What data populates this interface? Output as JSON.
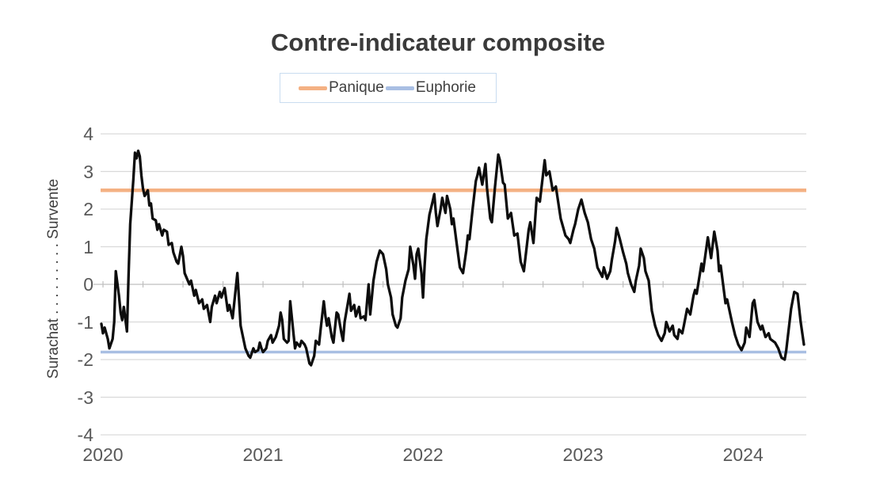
{
  "title": "Contre-indicateur composite",
  "y_axis_title": "Surachat  . . . . . . . . .  Survente",
  "legend": {
    "items": [
      {
        "label": "Panique",
        "color": "#F4B183"
      },
      {
        "label": "Euphorie",
        "color": "#A9BFE3"
      }
    ]
  },
  "colors": {
    "series": "#0D0D0D",
    "panique": "#F4B183",
    "euphorie": "#A9BFE3",
    "gridline": "#D9D9D9",
    "axis_line": "#BFBFBF",
    "tick_text": "#595959",
    "title_text": "#3A3A3A",
    "legend_border": "#C9DCF0"
  },
  "chart_data": {
    "type": "line",
    "title": "Contre-indicateur composite",
    "xlabel": "",
    "ylabel": "Surachat  . . . . . . . . .  Survente",
    "x_tick_years": [
      2020,
      2021,
      2022,
      2023,
      2024
    ],
    "x_tick_labels": [
      "2020",
      "2021",
      "2022",
      "2023",
      "2024"
    ],
    "y_ticks": [
      4,
      3,
      2,
      1,
      0,
      -1,
      -2,
      -3,
      -4
    ],
    "ylim": [
      -4,
      4
    ],
    "xlim": [
      2019.985,
      2024.395
    ],
    "grid": "horizontal",
    "legend_position": "top",
    "minor_tick_step_years": 0.25,
    "thresholds": [
      {
        "label": "Panique",
        "value": 2.5,
        "color": "#F4B183",
        "thickness": 4.5
      },
      {
        "label": "Euphorie",
        "value": -1.8,
        "color": "#A9BFE3",
        "thickness": 3.5
      }
    ],
    "series": [
      {
        "name": "Contre-indicateur composite",
        "color": "#0D0D0D",
        "thickness": 3.3,
        "points": [
          [
            2019.99,
            -1.05
          ],
          [
            2020.0,
            -1.3
          ],
          [
            2020.01,
            -1.15
          ],
          [
            2020.03,
            -1.45
          ],
          [
            2020.04,
            -1.7
          ],
          [
            2020.06,
            -1.45
          ],
          [
            2020.07,
            -1.0
          ],
          [
            2020.08,
            0.35
          ],
          [
            2020.1,
            -0.3
          ],
          [
            2020.11,
            -0.75
          ],
          [
            2020.12,
            -0.95
          ],
          [
            2020.13,
            -0.6
          ],
          [
            2020.15,
            -1.25
          ],
          [
            2020.16,
            0.3
          ],
          [
            2020.17,
            1.6
          ],
          [
            2020.19,
            2.8
          ],
          [
            2020.2,
            3.5
          ],
          [
            2020.21,
            3.35
          ],
          [
            2020.22,
            3.55
          ],
          [
            2020.23,
            3.4
          ],
          [
            2020.24,
            2.9
          ],
          [
            2020.25,
            2.55
          ],
          [
            2020.26,
            2.35
          ],
          [
            2020.28,
            2.5
          ],
          [
            2020.29,
            2.1
          ],
          [
            2020.3,
            2.15
          ],
          [
            2020.31,
            1.75
          ],
          [
            2020.33,
            1.7
          ],
          [
            2020.34,
            1.45
          ],
          [
            2020.35,
            1.6
          ],
          [
            2020.37,
            1.3
          ],
          [
            2020.38,
            1.45
          ],
          [
            2020.4,
            1.4
          ],
          [
            2020.41,
            1.05
          ],
          [
            2020.43,
            1.1
          ],
          [
            2020.44,
            0.85
          ],
          [
            2020.46,
            0.6
          ],
          [
            2020.47,
            0.55
          ],
          [
            2020.49,
            1.0
          ],
          [
            2020.5,
            0.75
          ],
          [
            2020.51,
            0.3
          ],
          [
            2020.53,
            0.1
          ],
          [
            2020.54,
            0.0
          ],
          [
            2020.55,
            0.1
          ],
          [
            2020.57,
            -0.3
          ],
          [
            2020.58,
            -0.15
          ],
          [
            2020.6,
            -0.5
          ],
          [
            2020.62,
            -0.4
          ],
          [
            2020.63,
            -0.65
          ],
          [
            2020.65,
            -0.55
          ],
          [
            2020.67,
            -1.0
          ],
          [
            2020.68,
            -0.6
          ],
          [
            2020.7,
            -0.3
          ],
          [
            2020.71,
            -0.5
          ],
          [
            2020.73,
            -0.2
          ],
          [
            2020.74,
            -0.35
          ],
          [
            2020.76,
            -0.1
          ],
          [
            2020.78,
            -0.7
          ],
          [
            2020.79,
            -0.55
          ],
          [
            2020.81,
            -0.9
          ],
          [
            2020.82,
            -0.5
          ],
          [
            2020.84,
            0.3
          ],
          [
            2020.85,
            -0.4
          ],
          [
            2020.86,
            -1.1
          ],
          [
            2020.88,
            -1.5
          ],
          [
            2020.89,
            -1.7
          ],
          [
            2020.91,
            -1.9
          ],
          [
            2020.92,
            -1.95
          ],
          [
            2020.94,
            -1.7
          ],
          [
            2020.95,
            -1.8
          ],
          [
            2020.97,
            -1.75
          ],
          [
            2020.98,
            -1.55
          ],
          [
            2020.99,
            -1.7
          ],
          [
            2021.0,
            -1.8
          ],
          [
            2021.02,
            -1.7
          ],
          [
            2021.03,
            -1.5
          ],
          [
            2021.05,
            -1.35
          ],
          [
            2021.06,
            -1.55
          ],
          [
            2021.08,
            -1.4
          ],
          [
            2021.1,
            -1.1
          ],
          [
            2021.11,
            -0.75
          ],
          [
            2021.12,
            -0.95
          ],
          [
            2021.13,
            -1.45
          ],
          [
            2021.15,
            -1.55
          ],
          [
            2021.16,
            -1.5
          ],
          [
            2021.17,
            -0.45
          ],
          [
            2021.19,
            -1.3
          ],
          [
            2021.2,
            -1.7
          ],
          [
            2021.21,
            -1.55
          ],
          [
            2021.23,
            -1.65
          ],
          [
            2021.24,
            -1.5
          ],
          [
            2021.26,
            -1.6
          ],
          [
            2021.27,
            -1.7
          ],
          [
            2021.29,
            -2.1
          ],
          [
            2021.3,
            -2.15
          ],
          [
            2021.32,
            -1.9
          ],
          [
            2021.33,
            -1.5
          ],
          [
            2021.35,
            -1.6
          ],
          [
            2021.36,
            -1.2
          ],
          [
            2021.38,
            -0.45
          ],
          [
            2021.39,
            -0.85
          ],
          [
            2021.4,
            -1.1
          ],
          [
            2021.41,
            -0.9
          ],
          [
            2021.43,
            -1.4
          ],
          [
            2021.44,
            -1.55
          ],
          [
            2021.46,
            -0.75
          ],
          [
            2021.47,
            -0.8
          ],
          [
            2021.49,
            -1.3
          ],
          [
            2021.5,
            -1.5
          ],
          [
            2021.51,
            -1.0
          ],
          [
            2021.53,
            -0.5
          ],
          [
            2021.54,
            -0.25
          ],
          [
            2021.55,
            -0.7
          ],
          [
            2021.57,
            -0.55
          ],
          [
            2021.58,
            -0.85
          ],
          [
            2021.6,
            -0.6
          ],
          [
            2021.61,
            -0.9
          ],
          [
            2021.63,
            -0.85
          ],
          [
            2021.64,
            -0.95
          ],
          [
            2021.66,
            0.0
          ],
          [
            2021.67,
            -0.8
          ],
          [
            2021.69,
            0.1
          ],
          [
            2021.71,
            0.6
          ],
          [
            2021.72,
            0.75
          ],
          [
            2021.73,
            0.9
          ],
          [
            2021.75,
            0.8
          ],
          [
            2021.77,
            0.4
          ],
          [
            2021.78,
            0.0
          ],
          [
            2021.8,
            -0.35
          ],
          [
            2021.81,
            -0.8
          ],
          [
            2021.83,
            -1.1
          ],
          [
            2021.84,
            -1.15
          ],
          [
            2021.86,
            -0.9
          ],
          [
            2021.87,
            -0.35
          ],
          [
            2021.89,
            0.1
          ],
          [
            2021.91,
            0.4
          ],
          [
            2021.92,
            1.0
          ],
          [
            2021.94,
            0.5
          ],
          [
            2021.95,
            0.15
          ],
          [
            2021.96,
            0.8
          ],
          [
            2021.97,
            0.95
          ],
          [
            2021.99,
            0.3
          ],
          [
            2022.0,
            -0.35
          ],
          [
            2022.01,
            0.5
          ],
          [
            2022.02,
            1.2
          ],
          [
            2022.04,
            1.85
          ],
          [
            2022.06,
            2.2
          ],
          [
            2022.07,
            2.4
          ],
          [
            2022.08,
            1.9
          ],
          [
            2022.09,
            1.55
          ],
          [
            2022.11,
            2.0
          ],
          [
            2022.12,
            2.3
          ],
          [
            2022.13,
            2.1
          ],
          [
            2022.14,
            1.9
          ],
          [
            2022.15,
            2.35
          ],
          [
            2022.17,
            2.0
          ],
          [
            2022.18,
            1.6
          ],
          [
            2022.19,
            1.75
          ],
          [
            2022.21,
            1.1
          ],
          [
            2022.23,
            0.45
          ],
          [
            2022.25,
            0.3
          ],
          [
            2022.27,
            0.9
          ],
          [
            2022.28,
            1.3
          ],
          [
            2022.29,
            1.2
          ],
          [
            2022.31,
            2.0
          ],
          [
            2022.33,
            2.75
          ],
          [
            2022.34,
            2.9
          ],
          [
            2022.35,
            3.1
          ],
          [
            2022.37,
            2.65
          ],
          [
            2022.39,
            3.2
          ],
          [
            2022.4,
            2.55
          ],
          [
            2022.42,
            1.75
          ],
          [
            2022.43,
            1.65
          ],
          [
            2022.45,
            2.6
          ],
          [
            2022.47,
            3.45
          ],
          [
            2022.48,
            3.3
          ],
          [
            2022.5,
            2.7
          ],
          [
            2022.51,
            2.65
          ],
          [
            2022.53,
            1.75
          ],
          [
            2022.55,
            1.9
          ],
          [
            2022.57,
            1.3
          ],
          [
            2022.59,
            1.35
          ],
          [
            2022.61,
            0.6
          ],
          [
            2022.63,
            0.35
          ],
          [
            2022.66,
            1.45
          ],
          [
            2022.67,
            1.65
          ],
          [
            2022.69,
            1.1
          ],
          [
            2022.71,
            2.3
          ],
          [
            2022.73,
            2.2
          ],
          [
            2022.76,
            3.3
          ],
          [
            2022.77,
            2.9
          ],
          [
            2022.79,
            3.0
          ],
          [
            2022.81,
            2.5
          ],
          [
            2022.83,
            2.6
          ],
          [
            2022.86,
            1.75
          ],
          [
            2022.87,
            1.6
          ],
          [
            2022.89,
            1.3
          ],
          [
            2022.91,
            1.2
          ],
          [
            2022.92,
            1.1
          ],
          [
            2022.94,
            1.45
          ],
          [
            2022.95,
            1.6
          ],
          [
            2022.97,
            2.0
          ],
          [
            2022.99,
            2.25
          ],
          [
            2023.01,
            1.9
          ],
          [
            2023.03,
            1.65
          ],
          [
            2023.05,
            1.2
          ],
          [
            2023.07,
            0.95
          ],
          [
            2023.09,
            0.45
          ],
          [
            2023.12,
            0.2
          ],
          [
            2023.13,
            0.45
          ],
          [
            2023.15,
            0.15
          ],
          [
            2023.17,
            0.35
          ],
          [
            2023.18,
            0.65
          ],
          [
            2023.2,
            1.15
          ],
          [
            2023.21,
            1.5
          ],
          [
            2023.23,
            1.2
          ],
          [
            2023.25,
            0.85
          ],
          [
            2023.27,
            0.55
          ],
          [
            2023.28,
            0.3
          ],
          [
            2023.3,
            0.0
          ],
          [
            2023.32,
            -0.2
          ],
          [
            2023.33,
            0.1
          ],
          [
            2023.35,
            0.5
          ],
          [
            2023.36,
            0.95
          ],
          [
            2023.38,
            0.7
          ],
          [
            2023.39,
            0.35
          ],
          [
            2023.41,
            0.1
          ],
          [
            2023.42,
            -0.3
          ],
          [
            2023.43,
            -0.7
          ],
          [
            2023.45,
            -1.1
          ],
          [
            2023.47,
            -1.35
          ],
          [
            2023.49,
            -1.5
          ],
          [
            2023.51,
            -1.3
          ],
          [
            2023.52,
            -1.0
          ],
          [
            2023.54,
            -1.25
          ],
          [
            2023.56,
            -1.1
          ],
          [
            2023.57,
            -1.35
          ],
          [
            2023.59,
            -1.45
          ],
          [
            2023.6,
            -1.2
          ],
          [
            2023.62,
            -1.3
          ],
          [
            2023.63,
            -1.1
          ],
          [
            2023.65,
            -0.65
          ],
          [
            2023.67,
            -0.8
          ],
          [
            2023.69,
            -0.3
          ],
          [
            2023.7,
            -0.15
          ],
          [
            2023.71,
            -0.25
          ],
          [
            2023.74,
            0.55
          ],
          [
            2023.75,
            0.35
          ],
          [
            2023.78,
            1.25
          ],
          [
            2023.8,
            0.7
          ],
          [
            2023.82,
            1.4
          ],
          [
            2023.84,
            0.9
          ],
          [
            2023.85,
            0.35
          ],
          [
            2023.86,
            0.5
          ],
          [
            2023.89,
            -0.5
          ],
          [
            2023.9,
            -0.4
          ],
          [
            2023.93,
            -1.0
          ],
          [
            2023.95,
            -1.35
          ],
          [
            2023.97,
            -1.6
          ],
          [
            2023.99,
            -1.75
          ],
          [
            2024.01,
            -1.55
          ],
          [
            2024.02,
            -1.15
          ],
          [
            2024.04,
            -1.4
          ],
          [
            2024.06,
            -0.5
          ],
          [
            2024.07,
            -0.42
          ],
          [
            2024.09,
            -1.0
          ],
          [
            2024.11,
            -1.2
          ],
          [
            2024.12,
            -1.1
          ],
          [
            2024.14,
            -1.4
          ],
          [
            2024.16,
            -1.3
          ],
          [
            2024.17,
            -1.45
          ],
          [
            2024.2,
            -1.55
          ],
          [
            2024.22,
            -1.7
          ],
          [
            2024.24,
            -1.95
          ],
          [
            2024.26,
            -2.0
          ],
          [
            2024.27,
            -1.75
          ],
          [
            2024.3,
            -0.65
          ],
          [
            2024.32,
            -0.2
          ],
          [
            2024.34,
            -0.25
          ],
          [
            2024.36,
            -1.0
          ],
          [
            2024.38,
            -1.6
          ]
        ]
      }
    ]
  }
}
